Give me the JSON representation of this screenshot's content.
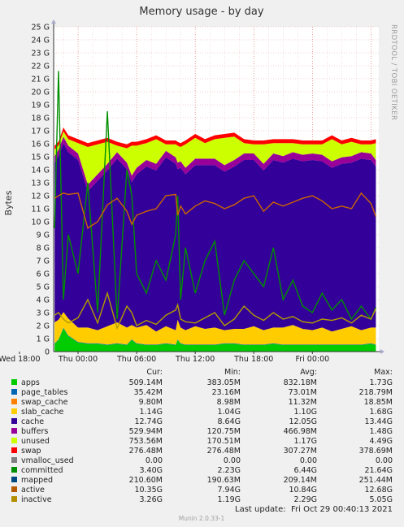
{
  "chart_data": {
    "type": "area",
    "title": "Memory usage - by day",
    "ylabel": "Bytes",
    "side_text": "RRDTOOL / TOBI OETIKER",
    "ylim": [
      0,
      25
    ],
    "yticks": [
      "0",
      "1 G",
      "2 G",
      "3 G",
      "4 G",
      "5 G",
      "6 G",
      "7 G",
      "8 G",
      "9 G",
      "10 G",
      "11 G",
      "12 G",
      "13 G",
      "14 G",
      "15 G",
      "16 G",
      "17 G",
      "18 G",
      "19 G",
      "20 G",
      "21 G",
      "22 G",
      "23 G",
      "24 G",
      "25 G"
    ],
    "xticks": [
      "Wed 18:00",
      "Thu 00:00",
      "Thu 06:00",
      "Thu 12:00",
      "Thu 18:00",
      "Fri 00:00"
    ],
    "x_range_hours": [
      -2.5,
      30.8
    ],
    "x_sample_hours": [
      -2.4,
      -2,
      -1.5,
      -1,
      0,
      1,
      2,
      3,
      4,
      5,
      5.5,
      6,
      7,
      8,
      9,
      10,
      10.2,
      10.5,
      11,
      12,
      13,
      14,
      15,
      16,
      17,
      18,
      19,
      20,
      21,
      22,
      23,
      24,
      25,
      26,
      27,
      28,
      29,
      30,
      30.5
    ],
    "stack_order": [
      "apps",
      "page_tables",
      "swap_cache",
      "slab_cache",
      "cache",
      "buffers",
      "unused",
      "swap"
    ],
    "line_order": [
      "committed",
      "inactive",
      "active"
    ],
    "series": [
      {
        "name": "apps",
        "color": "#00cc00",
        "type": "area",
        "values": [
          0.6,
          0.9,
          1.8,
          1.2,
          0.7,
          0.6,
          0.6,
          0.5,
          0.6,
          0.5,
          0.9,
          0.6,
          0.5,
          0.5,
          0.6,
          0.5,
          0.9,
          0.6,
          0.5,
          0.5,
          0.5,
          0.5,
          0.6,
          0.6,
          0.5,
          0.5,
          0.5,
          0.6,
          0.5,
          0.5,
          0.5,
          0.5,
          0.5,
          0.5,
          0.5,
          0.5,
          0.5,
          0.6,
          0.5
        ]
      },
      {
        "name": "page_tables",
        "color": "#0066b3",
        "type": "area",
        "values": [
          0.04,
          0.04,
          0.04,
          0.04,
          0.04,
          0.04,
          0.04,
          0.04,
          0.04,
          0.04,
          0.04,
          0.04,
          0.04,
          0.04,
          0.04,
          0.04,
          0.04,
          0.04,
          0.04,
          0.04,
          0.04,
          0.04,
          0.04,
          0.04,
          0.04,
          0.04,
          0.04,
          0.04,
          0.04,
          0.04,
          0.04,
          0.04,
          0.04,
          0.04,
          0.04,
          0.04,
          0.04,
          0.04,
          0.04
        ]
      },
      {
        "name": "swap_cache",
        "color": "#ff8000",
        "type": "area",
        "values": [
          0.01,
          0.01,
          0.01,
          0.01,
          0.01,
          0.01,
          0.01,
          0.01,
          0.01,
          0.01,
          0.01,
          0.01,
          0.01,
          0.01,
          0.01,
          0.01,
          0.01,
          0.01,
          0.01,
          0.01,
          0.01,
          0.01,
          0.01,
          0.01,
          0.01,
          0.01,
          0.01,
          0.01,
          0.01,
          0.01,
          0.01,
          0.01,
          0.01,
          0.01,
          0.01,
          0.01,
          0.01,
          0.01,
          0.01
        ]
      },
      {
        "name": "slab_cache",
        "color": "#ffcc00",
        "type": "area",
        "values": [
          1.6,
          1.5,
          1.2,
          1.3,
          1.1,
          1.2,
          1.0,
          1.4,
          1.6,
          1.3,
          1.1,
          1.2,
          1.5,
          1.0,
          1.3,
          1.1,
          1.5,
          1.2,
          1.1,
          1.4,
          1.2,
          1.3,
          1.0,
          1.1,
          1.2,
          1.4,
          1.1,
          1.2,
          1.3,
          1.5,
          1.2,
          1.1,
          1.3,
          1.0,
          1.2,
          1.4,
          1.1,
          1.2,
          1.3
        ]
      },
      {
        "name": "cache",
        "color": "#330099",
        "type": "area",
        "values": [
          12.3,
          12.6,
          13.0,
          12.8,
          12.9,
          10.5,
          11.5,
          12.0,
          12.6,
          12.2,
          11.0,
          11.8,
          12.2,
          12.4,
          13.0,
          12.8,
          11.6,
          12.3,
          12.0,
          12.4,
          12.6,
          12.5,
          12.2,
          12.5,
          13.0,
          12.8,
          12.3,
          12.9,
          12.7,
          12.8,
          12.9,
          13.1,
          12.8,
          12.6,
          12.7,
          12.6,
          13.2,
          12.9,
          12.4
        ]
      },
      {
        "name": "buffers",
        "color": "#990099",
        "type": "area",
        "values": [
          0.5,
          0.5,
          0.5,
          0.5,
          0.5,
          0.5,
          0.5,
          0.5,
          0.5,
          0.5,
          0.5,
          0.5,
          0.5,
          0.5,
          0.5,
          0.5,
          0.5,
          0.5,
          0.5,
          0.5,
          0.5,
          0.5,
          0.5,
          0.5,
          0.5,
          0.5,
          0.5,
          0.5,
          0.5,
          0.5,
          0.5,
          0.5,
          0.5,
          0.5,
          0.5,
          0.5,
          0.5,
          0.5,
          0.5
        ]
      },
      {
        "name": "unused",
        "color": "#ccff00",
        "type": "area",
        "values": [
          0.5,
          0.3,
          0.4,
          0.5,
          0.8,
          2.9,
          2.3,
          1.7,
          0.5,
          1.1,
          2.3,
          1.7,
          1.3,
          1.9,
          0.5,
          1.0,
          1.3,
          1.1,
          1.8,
          1.6,
          1.2,
          1.5,
          2.1,
          1.8,
          0.8,
          0.7,
          1.5,
          0.8,
          1.0,
          0.7,
          0.8,
          0.7,
          0.8,
          1.7,
          1.0,
          1.1,
          0.6,
          0.7,
          1.3
        ]
      },
      {
        "name": "swap",
        "color": "#ff0000",
        "type": "area",
        "values": [
          0.3,
          0.3,
          0.3,
          0.3,
          0.3,
          0.3,
          0.3,
          0.3,
          0.3,
          0.3,
          0.3,
          0.3,
          0.3,
          0.3,
          0.3,
          0.3,
          0.3,
          0.3,
          0.3,
          0.3,
          0.3,
          0.3,
          0.3,
          0.3,
          0.3,
          0.3,
          0.3,
          0.3,
          0.3,
          0.3,
          0.3,
          0.3,
          0.3,
          0.3,
          0.3,
          0.3,
          0.3,
          0.3,
          0.3
        ]
      },
      {
        "name": "committed",
        "color": "#008f00",
        "type": "line",
        "values": [
          9.5,
          21.6,
          4.0,
          9.0,
          6.0,
          13.0,
          3.0,
          18.5,
          2.5,
          14.0,
          12.0,
          6.0,
          4.5,
          7.0,
          5.5,
          9.0,
          12.0,
          4.0,
          8.0,
          4.5,
          7.0,
          8.5,
          2.8,
          5.5,
          7.0,
          6.0,
          5.0,
          8.0,
          4.0,
          5.5,
          3.5,
          3.0,
          4.5,
          3.2,
          4.0,
          2.5,
          3.5,
          2.5,
          3.4
        ]
      },
      {
        "name": "inactive",
        "color": "#b39d00",
        "type": "line",
        "values": [
          2.8,
          3.0,
          2.5,
          2.2,
          2.6,
          4.0,
          2.2,
          4.5,
          1.8,
          3.5,
          3.0,
          2.0,
          2.4,
          2.1,
          2.8,
          3.2,
          3.6,
          2.5,
          2.3,
          2.2,
          2.6,
          3.0,
          2.0,
          2.5,
          3.5,
          2.8,
          2.4,
          3.0,
          2.5,
          2.7,
          2.3,
          2.2,
          2.5,
          2.4,
          2.6,
          2.2,
          2.8,
          2.5,
          3.3
        ]
      },
      {
        "name": "active",
        "color": "#cc6600",
        "type": "line",
        "values": [
          11.8,
          12.0,
          12.2,
          12.1,
          12.2,
          9.5,
          10.0,
          11.3,
          11.8,
          10.8,
          9.8,
          10.5,
          10.8,
          11.0,
          12.0,
          12.1,
          10.5,
          11.2,
          10.6,
          11.2,
          11.6,
          11.4,
          11.0,
          11.3,
          11.8,
          12.0,
          10.8,
          11.5,
          11.2,
          11.5,
          11.8,
          12.0,
          11.6,
          11.0,
          11.2,
          11.0,
          12.2,
          11.4,
          10.4
        ]
      }
    ],
    "legend": {
      "headers": [
        "Cur:",
        "Min:",
        "Avg:",
        "Max:"
      ],
      "rows": [
        {
          "name": "apps",
          "color": "#00cc00",
          "cur": "509.14M",
          "min": "383.05M",
          "avg": "832.18M",
          "max": "1.73G"
        },
        {
          "name": "page_tables",
          "color": "#0066b3",
          "cur": "35.42M",
          "min": "23.16M",
          "avg": "73.01M",
          "max": "218.79M"
        },
        {
          "name": "swap_cache",
          "color": "#ff8000",
          "cur": "9.80M",
          "min": "8.98M",
          "avg": "11.32M",
          "max": "18.85M"
        },
        {
          "name": "slab_cache",
          "color": "#ffcc00",
          "cur": "1.14G",
          "min": "1.04G",
          "avg": "1.10G",
          "max": "1.68G"
        },
        {
          "name": "cache",
          "color": "#330099",
          "cur": "12.74G",
          "min": "8.64G",
          "avg": "12.05G",
          "max": "13.44G"
        },
        {
          "name": "buffers",
          "color": "#990099",
          "cur": "529.94M",
          "min": "120.75M",
          "avg": "466.98M",
          "max": "1.48G"
        },
        {
          "name": "unused",
          "color": "#ccff00",
          "cur": "753.56M",
          "min": "170.51M",
          "avg": "1.17G",
          "max": "4.49G"
        },
        {
          "name": "swap",
          "color": "#ff0000",
          "cur": "276.48M",
          "min": "276.48M",
          "avg": "307.27M",
          "max": "378.69M"
        },
        {
          "name": "vmalloc_used",
          "color": "#808080",
          "cur": "0.00",
          "min": "0.00",
          "avg": "0.00",
          "max": "0.00"
        },
        {
          "name": "committed",
          "color": "#008f00",
          "cur": "3.40G",
          "min": "2.23G",
          "avg": "6.44G",
          "max": "21.64G"
        },
        {
          "name": "mapped",
          "color": "#00487d",
          "cur": "210.60M",
          "min": "190.63M",
          "avg": "209.14M",
          "max": "251.44M"
        },
        {
          "name": "active",
          "color": "#b35a00",
          "cur": "10.35G",
          "min": "7.94G",
          "avg": "10.84G",
          "max": "12.68G"
        },
        {
          "name": "inactive",
          "color": "#b38f00",
          "cur": "3.26G",
          "min": "1.19G",
          "avg": "2.29G",
          "max": "5.05G"
        }
      ]
    },
    "last_update": "Last update:  Fri Oct 29 00:40:13 2021",
    "version": "Munin 2.0.33-1",
    "grid": true
  }
}
